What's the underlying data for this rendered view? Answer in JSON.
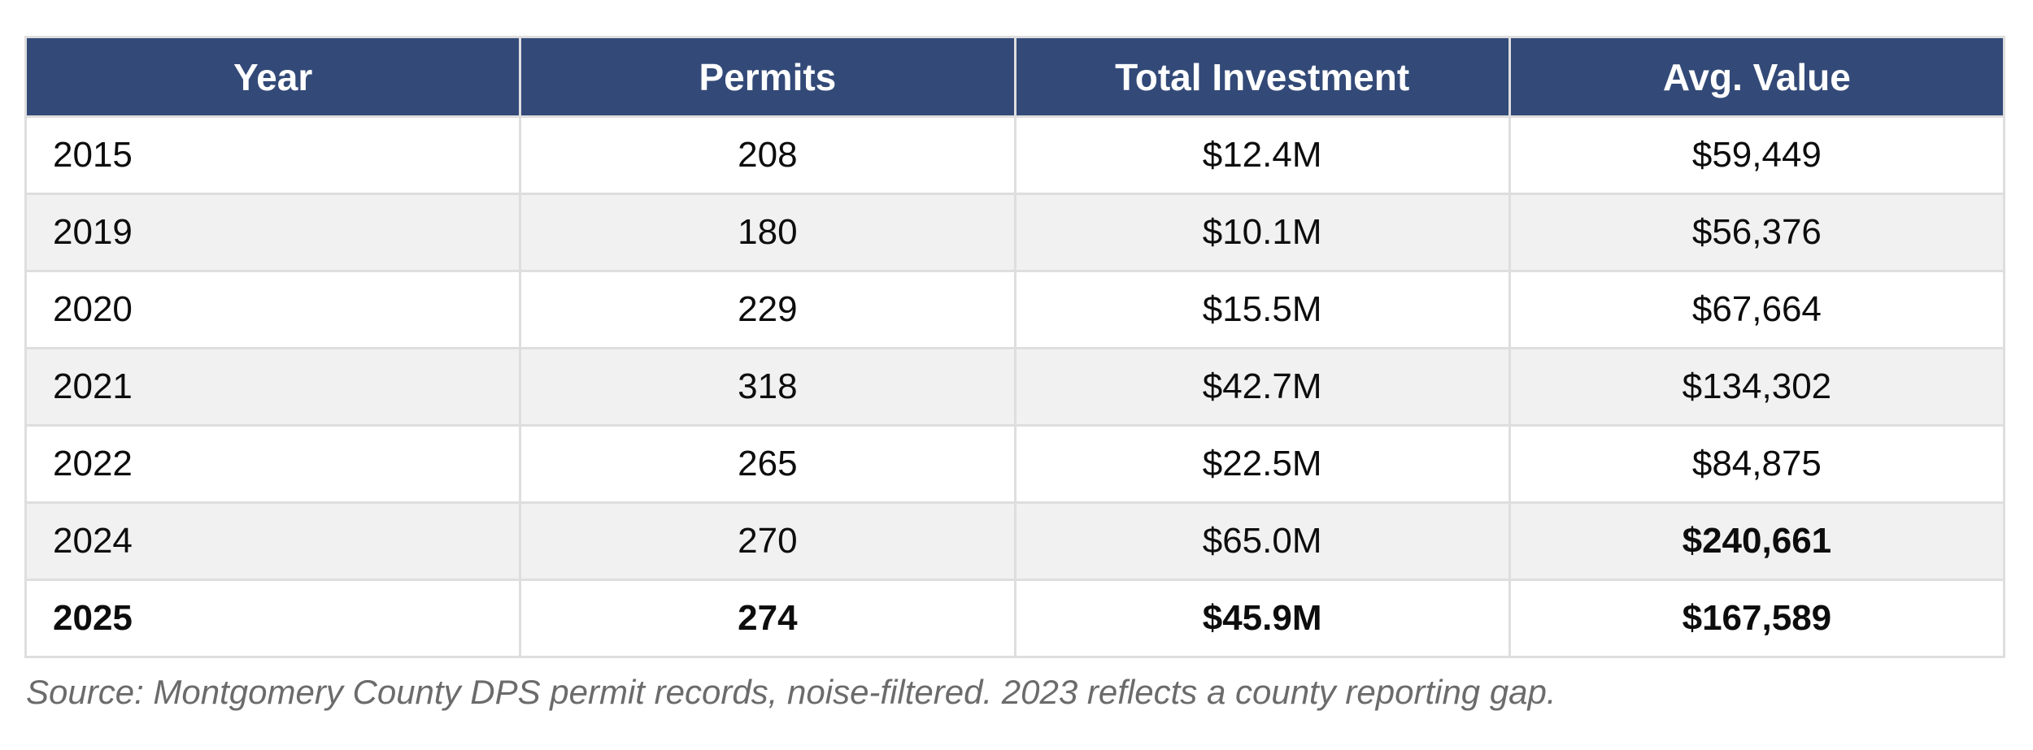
{
  "colors": {
    "header_bg": "#334a78",
    "header_text": "#ffffff",
    "row_alt_bg": "#f1f1f1",
    "border": "#dedede",
    "source_text": "#6b6b6b"
  },
  "chart_data": {
    "type": "table",
    "columns": [
      "Year",
      "Permits",
      "Total Investment",
      "Avg. Value"
    ],
    "rows": [
      {
        "year": "2015",
        "permits": "208",
        "investment": "$12.4M",
        "avg_value": "$59,449",
        "bold_cells": []
      },
      {
        "year": "2019",
        "permits": "180",
        "investment": "$10.1M",
        "avg_value": "$56,376",
        "bold_cells": []
      },
      {
        "year": "2020",
        "permits": "229",
        "investment": "$15.5M",
        "avg_value": "$67,664",
        "bold_cells": []
      },
      {
        "year": "2021",
        "permits": "318",
        "investment": "$42.7M",
        "avg_value": "$134,302",
        "bold_cells": []
      },
      {
        "year": "2022",
        "permits": "265",
        "investment": "$22.5M",
        "avg_value": "$84,875",
        "bold_cells": []
      },
      {
        "year": "2024",
        "permits": "270",
        "investment": "$65.0M",
        "avg_value": "$240,661",
        "bold_cells": [
          "avg_value"
        ]
      },
      {
        "year": "2025",
        "permits": "274",
        "investment": "$45.9M",
        "avg_value": "$167,589",
        "bold_cells": [
          "year",
          "permits",
          "investment",
          "avg_value"
        ]
      }
    ]
  },
  "header": {
    "col_year": "Year",
    "col_permits": "Permits",
    "col_investment": "Total Investment",
    "col_avg_value": "Avg. Value"
  },
  "footer": {
    "source_note": "Source: Montgomery County DPS permit records, noise-filtered. 2023 reflects a county reporting gap."
  }
}
